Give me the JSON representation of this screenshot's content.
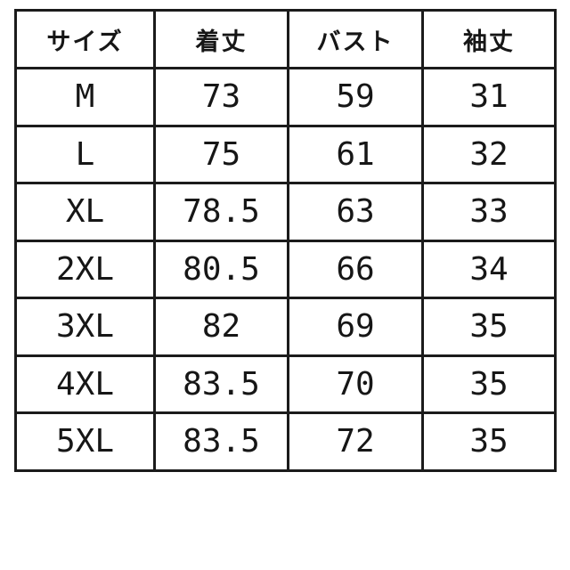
{
  "colors": {
    "background": "#ffffff",
    "border": "#1b1b1b",
    "text": "#161616"
  },
  "chart_data": {
    "type": "table",
    "title": "",
    "columns": [
      "サイズ",
      "着丈",
      "バスト",
      "袖丈"
    ],
    "column_keys": [
      "size",
      "body-length",
      "bust",
      "sleeve-length"
    ],
    "rows": [
      [
        "M",
        "73",
        "59",
        "31"
      ],
      [
        "L",
        "75",
        "61",
        "32"
      ],
      [
        "XL",
        "78.5",
        "63",
        "33"
      ],
      [
        "2XL",
        "80.5",
        "66",
        "34"
      ],
      [
        "3XL",
        "82",
        "69",
        "35"
      ],
      [
        "4XL",
        "83.5",
        "70",
        "35"
      ],
      [
        "5XL",
        "83.5",
        "72",
        "35"
      ]
    ]
  }
}
